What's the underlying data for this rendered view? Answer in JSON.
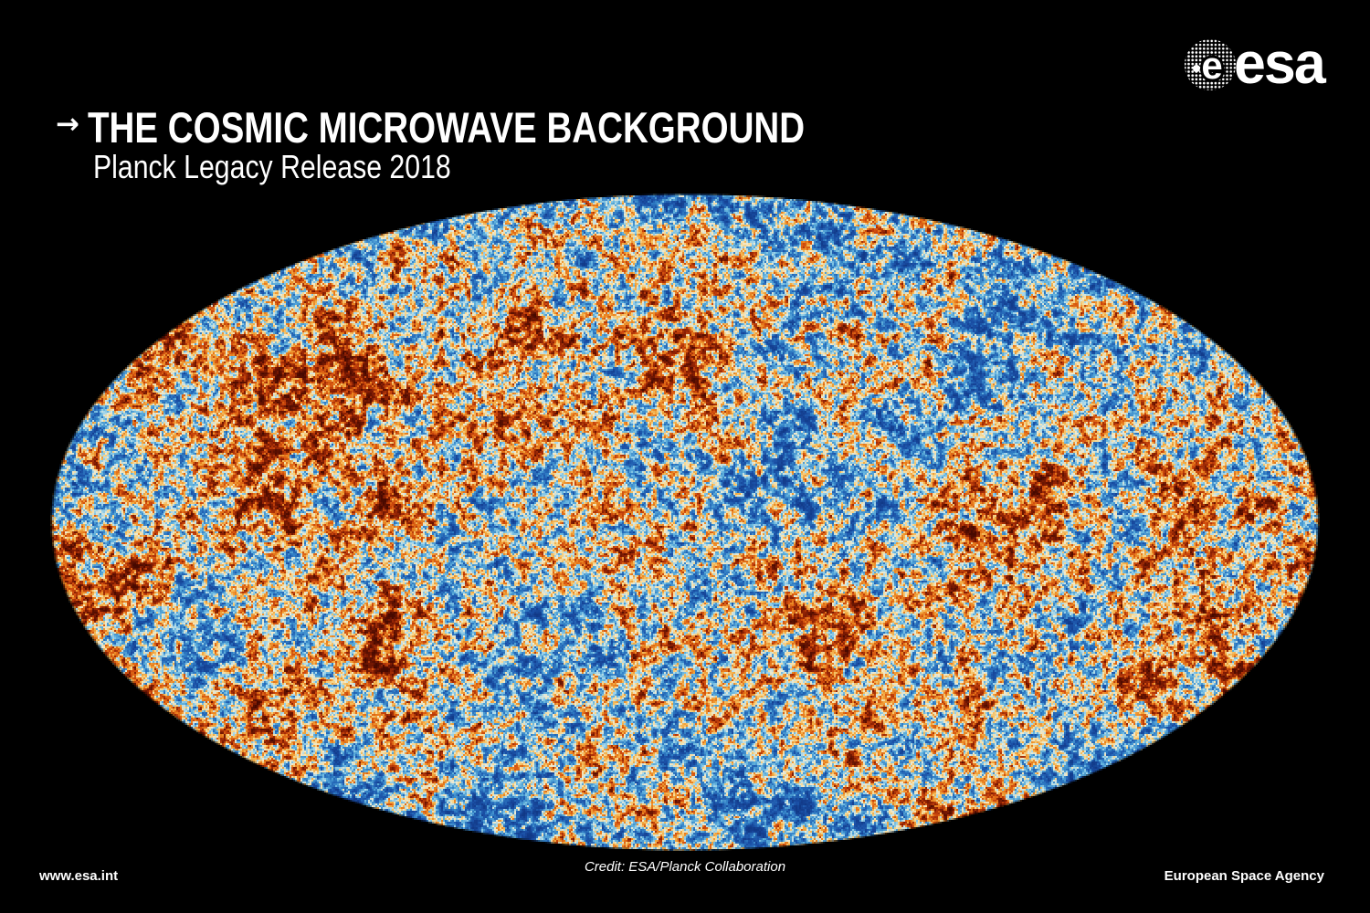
{
  "header": {
    "arrow": "→",
    "title": "THE COSMIC MICROWAVE BACKGROUND",
    "subtitle": "Planck Legacy Release 2018"
  },
  "logo": {
    "globe_letter": "e",
    "wordmark": "esa"
  },
  "map": {
    "description": "Planck full-sky cosmic microwave background map, elliptical Mollweide projection",
    "background": "#000000",
    "colormap": [
      {
        "p": 0.0,
        "c": "#0d2f7a"
      },
      {
        "p": 0.1,
        "c": "#1a4fa5"
      },
      {
        "p": 0.22,
        "c": "#2f7cc4"
      },
      {
        "p": 0.34,
        "c": "#5fb0dc"
      },
      {
        "p": 0.44,
        "c": "#a9d8ea"
      },
      {
        "p": 0.52,
        "c": "#f0ead0"
      },
      {
        "p": 0.6,
        "c": "#f6d68e"
      },
      {
        "p": 0.68,
        "c": "#f2ab43"
      },
      {
        "p": 0.76,
        "c": "#e87c1c"
      },
      {
        "p": 0.84,
        "c": "#cf4a0d"
      },
      {
        "p": 0.92,
        "c": "#8e2104"
      },
      {
        "p": 1.0,
        "c": "#470900"
      }
    ]
  },
  "footer": {
    "website": "www.esa.int",
    "credit": "Credit: ESA/Planck Collaboration",
    "agency": "European Space Agency"
  }
}
